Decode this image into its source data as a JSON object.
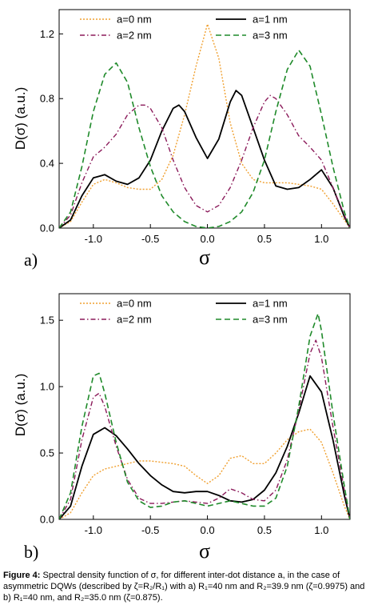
{
  "caption": {
    "label": "Figure 4:",
    "text": "Spectral density function of σ, for different inter-dot distance a, in the case of asymmetric DQWs (described by ζ=R₂/R₁) with a) R₁=40 nm and R₂=39.9 nm (ζ=0.9975) and b) R₁=40 nm, and R₂=35.0 nm (ζ=0.875)."
  },
  "styles": {
    "a=0 nm": {
      "color": "#F0A030",
      "dash": "2,2",
      "width": 1.4
    },
    "a=1 nm": {
      "color": "#000000",
      "dash": "",
      "width": 1.8
    },
    "a=2 nm": {
      "color": "#8B1A5A",
      "dash": "6,3,1.5,3",
      "width": 1.4
    },
    "a=3 nm": {
      "color": "#1F8A2A",
      "dash": "7,4",
      "width": 1.6
    }
  },
  "chart_data": [
    {
      "panel": "a)",
      "type": "line",
      "xlabel": "σ",
      "ylabel": "D(σ) (a.u.)",
      "xlim": [
        -1.3,
        1.25
      ],
      "ylim": [
        0,
        1.35
      ],
      "xticks": [
        -1.0,
        -0.5,
        0.0,
        0.5,
        1.0
      ],
      "xtick_labels": [
        "-1.0",
        "-0.5",
        "0.0",
        "0.5",
        "1.0"
      ],
      "yticks": [
        0.0,
        0.4,
        0.8,
        1.2
      ],
      "ytick_labels": [
        "0.0",
        "0.4",
        "0.8",
        "1.2"
      ],
      "legend": [
        "a=0 nm",
        "a=1 nm",
        "a=2 nm",
        "a=3 nm"
      ],
      "series": [
        {
          "name": "a=0 nm",
          "x": [
            -1.3,
            -1.2,
            -1.1,
            -1.0,
            -0.9,
            -0.8,
            -0.7,
            -0.6,
            -0.5,
            -0.4,
            -0.3,
            -0.2,
            -0.1,
            0.0,
            0.1,
            0.2,
            0.3,
            0.4,
            0.5,
            0.6,
            0.7,
            0.8,
            0.9,
            1.0,
            1.1,
            1.2,
            1.25
          ],
          "y": [
            0.0,
            0.04,
            0.16,
            0.27,
            0.3,
            0.28,
            0.25,
            0.24,
            0.24,
            0.3,
            0.45,
            0.7,
            1.0,
            1.26,
            1.05,
            0.65,
            0.4,
            0.3,
            0.28,
            0.28,
            0.28,
            0.27,
            0.26,
            0.24,
            0.15,
            0.05,
            0.0
          ]
        },
        {
          "name": "a=1 nm",
          "x": [
            -1.3,
            -1.2,
            -1.1,
            -1.0,
            -0.9,
            -0.8,
            -0.7,
            -0.6,
            -0.5,
            -0.4,
            -0.3,
            -0.25,
            -0.2,
            -0.1,
            0.0,
            0.1,
            0.2,
            0.25,
            0.3,
            0.4,
            0.5,
            0.6,
            0.7,
            0.8,
            0.9,
            1.0,
            1.1,
            1.2,
            1.25
          ],
          "y": [
            0.0,
            0.05,
            0.2,
            0.31,
            0.33,
            0.29,
            0.27,
            0.31,
            0.42,
            0.6,
            0.74,
            0.76,
            0.72,
            0.56,
            0.43,
            0.55,
            0.78,
            0.85,
            0.82,
            0.62,
            0.42,
            0.26,
            0.24,
            0.25,
            0.3,
            0.36,
            0.25,
            0.07,
            0.0
          ]
        },
        {
          "name": "a=2 nm",
          "x": [
            -1.3,
            -1.2,
            -1.1,
            -1.0,
            -0.9,
            -0.8,
            -0.7,
            -0.6,
            -0.55,
            -0.5,
            -0.4,
            -0.3,
            -0.2,
            -0.1,
            0.0,
            0.1,
            0.2,
            0.3,
            0.4,
            0.5,
            0.55,
            0.6,
            0.7,
            0.8,
            0.9,
            1.0,
            1.1,
            1.2,
            1.25
          ],
          "y": [
            0.0,
            0.08,
            0.28,
            0.44,
            0.5,
            0.58,
            0.7,
            0.76,
            0.76,
            0.74,
            0.62,
            0.42,
            0.25,
            0.14,
            0.1,
            0.14,
            0.25,
            0.42,
            0.62,
            0.78,
            0.82,
            0.8,
            0.7,
            0.57,
            0.5,
            0.42,
            0.25,
            0.08,
            0.0
          ]
        },
        {
          "name": "a=3 nm",
          "x": [
            -1.3,
            -1.2,
            -1.1,
            -1.0,
            -0.9,
            -0.8,
            -0.7,
            -0.6,
            -0.5,
            -0.4,
            -0.3,
            -0.2,
            -0.1,
            0.0,
            0.1,
            0.2,
            0.3,
            0.4,
            0.5,
            0.6,
            0.7,
            0.8,
            0.9,
            1.0,
            1.1,
            1.2,
            1.25
          ],
          "y": [
            0.0,
            0.1,
            0.38,
            0.72,
            0.95,
            1.02,
            0.9,
            0.62,
            0.38,
            0.2,
            0.1,
            0.04,
            0.01,
            0.0,
            0.01,
            0.04,
            0.1,
            0.22,
            0.42,
            0.72,
            0.98,
            1.1,
            1.0,
            0.7,
            0.38,
            0.1,
            0.0
          ]
        }
      ]
    },
    {
      "panel": "b)",
      "type": "line",
      "xlabel": "σ",
      "ylabel": "D(σ) (a.u.)",
      "xlim": [
        -1.3,
        1.25
      ],
      "ylim": [
        0,
        1.7
      ],
      "xticks": [
        -1.0,
        -0.5,
        0.0,
        0.5,
        1.0
      ],
      "xtick_labels": [
        "-1.0",
        "-0.5",
        "0.0",
        "0.5",
        "1.0"
      ],
      "yticks": [
        0.0,
        0.5,
        1.0,
        1.5
      ],
      "ytick_labels": [
        "0.0",
        "0.5",
        "1.0",
        "1.5"
      ],
      "legend": [
        "a=0 nm",
        "a=1 nm",
        "a=2 nm",
        "a=3 nm"
      ],
      "series": [
        {
          "name": "a=0 nm",
          "x": [
            -1.3,
            -1.2,
            -1.1,
            -1.0,
            -0.9,
            -0.8,
            -0.7,
            -0.6,
            -0.5,
            -0.4,
            -0.3,
            -0.2,
            -0.1,
            0.0,
            0.1,
            0.2,
            0.3,
            0.4,
            0.5,
            0.6,
            0.7,
            0.8,
            0.9,
            1.0,
            1.1,
            1.2,
            1.25
          ],
          "y": [
            0.0,
            0.05,
            0.2,
            0.33,
            0.38,
            0.4,
            0.42,
            0.44,
            0.44,
            0.43,
            0.42,
            0.4,
            0.33,
            0.27,
            0.33,
            0.46,
            0.48,
            0.42,
            0.42,
            0.5,
            0.6,
            0.66,
            0.68,
            0.58,
            0.35,
            0.1,
            0.0
          ]
        },
        {
          "name": "a=1 nm",
          "x": [
            -1.3,
            -1.2,
            -1.1,
            -1.0,
            -0.9,
            -0.8,
            -0.7,
            -0.6,
            -0.5,
            -0.4,
            -0.3,
            -0.2,
            -0.1,
            0.0,
            0.1,
            0.2,
            0.3,
            0.4,
            0.5,
            0.6,
            0.7,
            0.8,
            0.9,
            1.0,
            1.1,
            1.2,
            1.25
          ],
          "y": [
            0.0,
            0.1,
            0.4,
            0.64,
            0.69,
            0.63,
            0.53,
            0.42,
            0.33,
            0.26,
            0.21,
            0.2,
            0.21,
            0.21,
            0.18,
            0.14,
            0.13,
            0.15,
            0.22,
            0.35,
            0.55,
            0.8,
            1.08,
            0.96,
            0.6,
            0.18,
            0.0
          ]
        },
        {
          "name": "a=2 nm",
          "x": [
            -1.3,
            -1.2,
            -1.1,
            -1.0,
            -0.95,
            -0.9,
            -0.8,
            -0.7,
            -0.6,
            -0.5,
            -0.4,
            -0.3,
            -0.2,
            -0.1,
            0.0,
            0.1,
            0.2,
            0.3,
            0.4,
            0.5,
            0.6,
            0.7,
            0.8,
            0.9,
            0.95,
            1.0,
            1.1,
            1.2,
            1.25
          ],
          "y": [
            0.0,
            0.15,
            0.6,
            0.92,
            0.95,
            0.85,
            0.55,
            0.3,
            0.16,
            0.12,
            0.12,
            0.13,
            0.14,
            0.13,
            0.12,
            0.16,
            0.23,
            0.2,
            0.15,
            0.14,
            0.22,
            0.45,
            0.82,
            1.25,
            1.35,
            1.22,
            0.7,
            0.22,
            0.0
          ]
        },
        {
          "name": "a=3 nm",
          "x": [
            -1.3,
            -1.2,
            -1.1,
            -1.0,
            -0.95,
            -0.9,
            -0.8,
            -0.7,
            -0.6,
            -0.5,
            -0.4,
            -0.3,
            -0.2,
            -0.1,
            0.0,
            0.1,
            0.2,
            0.3,
            0.4,
            0.5,
            0.6,
            0.7,
            0.8,
            0.9,
            0.97,
            1.0,
            1.1,
            1.2,
            1.25
          ],
          "y": [
            0.0,
            0.2,
            0.7,
            1.08,
            1.1,
            0.95,
            0.58,
            0.28,
            0.14,
            0.09,
            0.1,
            0.13,
            0.14,
            0.12,
            0.1,
            0.12,
            0.14,
            0.12,
            0.1,
            0.1,
            0.16,
            0.4,
            0.85,
            1.38,
            1.55,
            1.42,
            0.8,
            0.25,
            0.0
          ]
        }
      ]
    }
  ]
}
